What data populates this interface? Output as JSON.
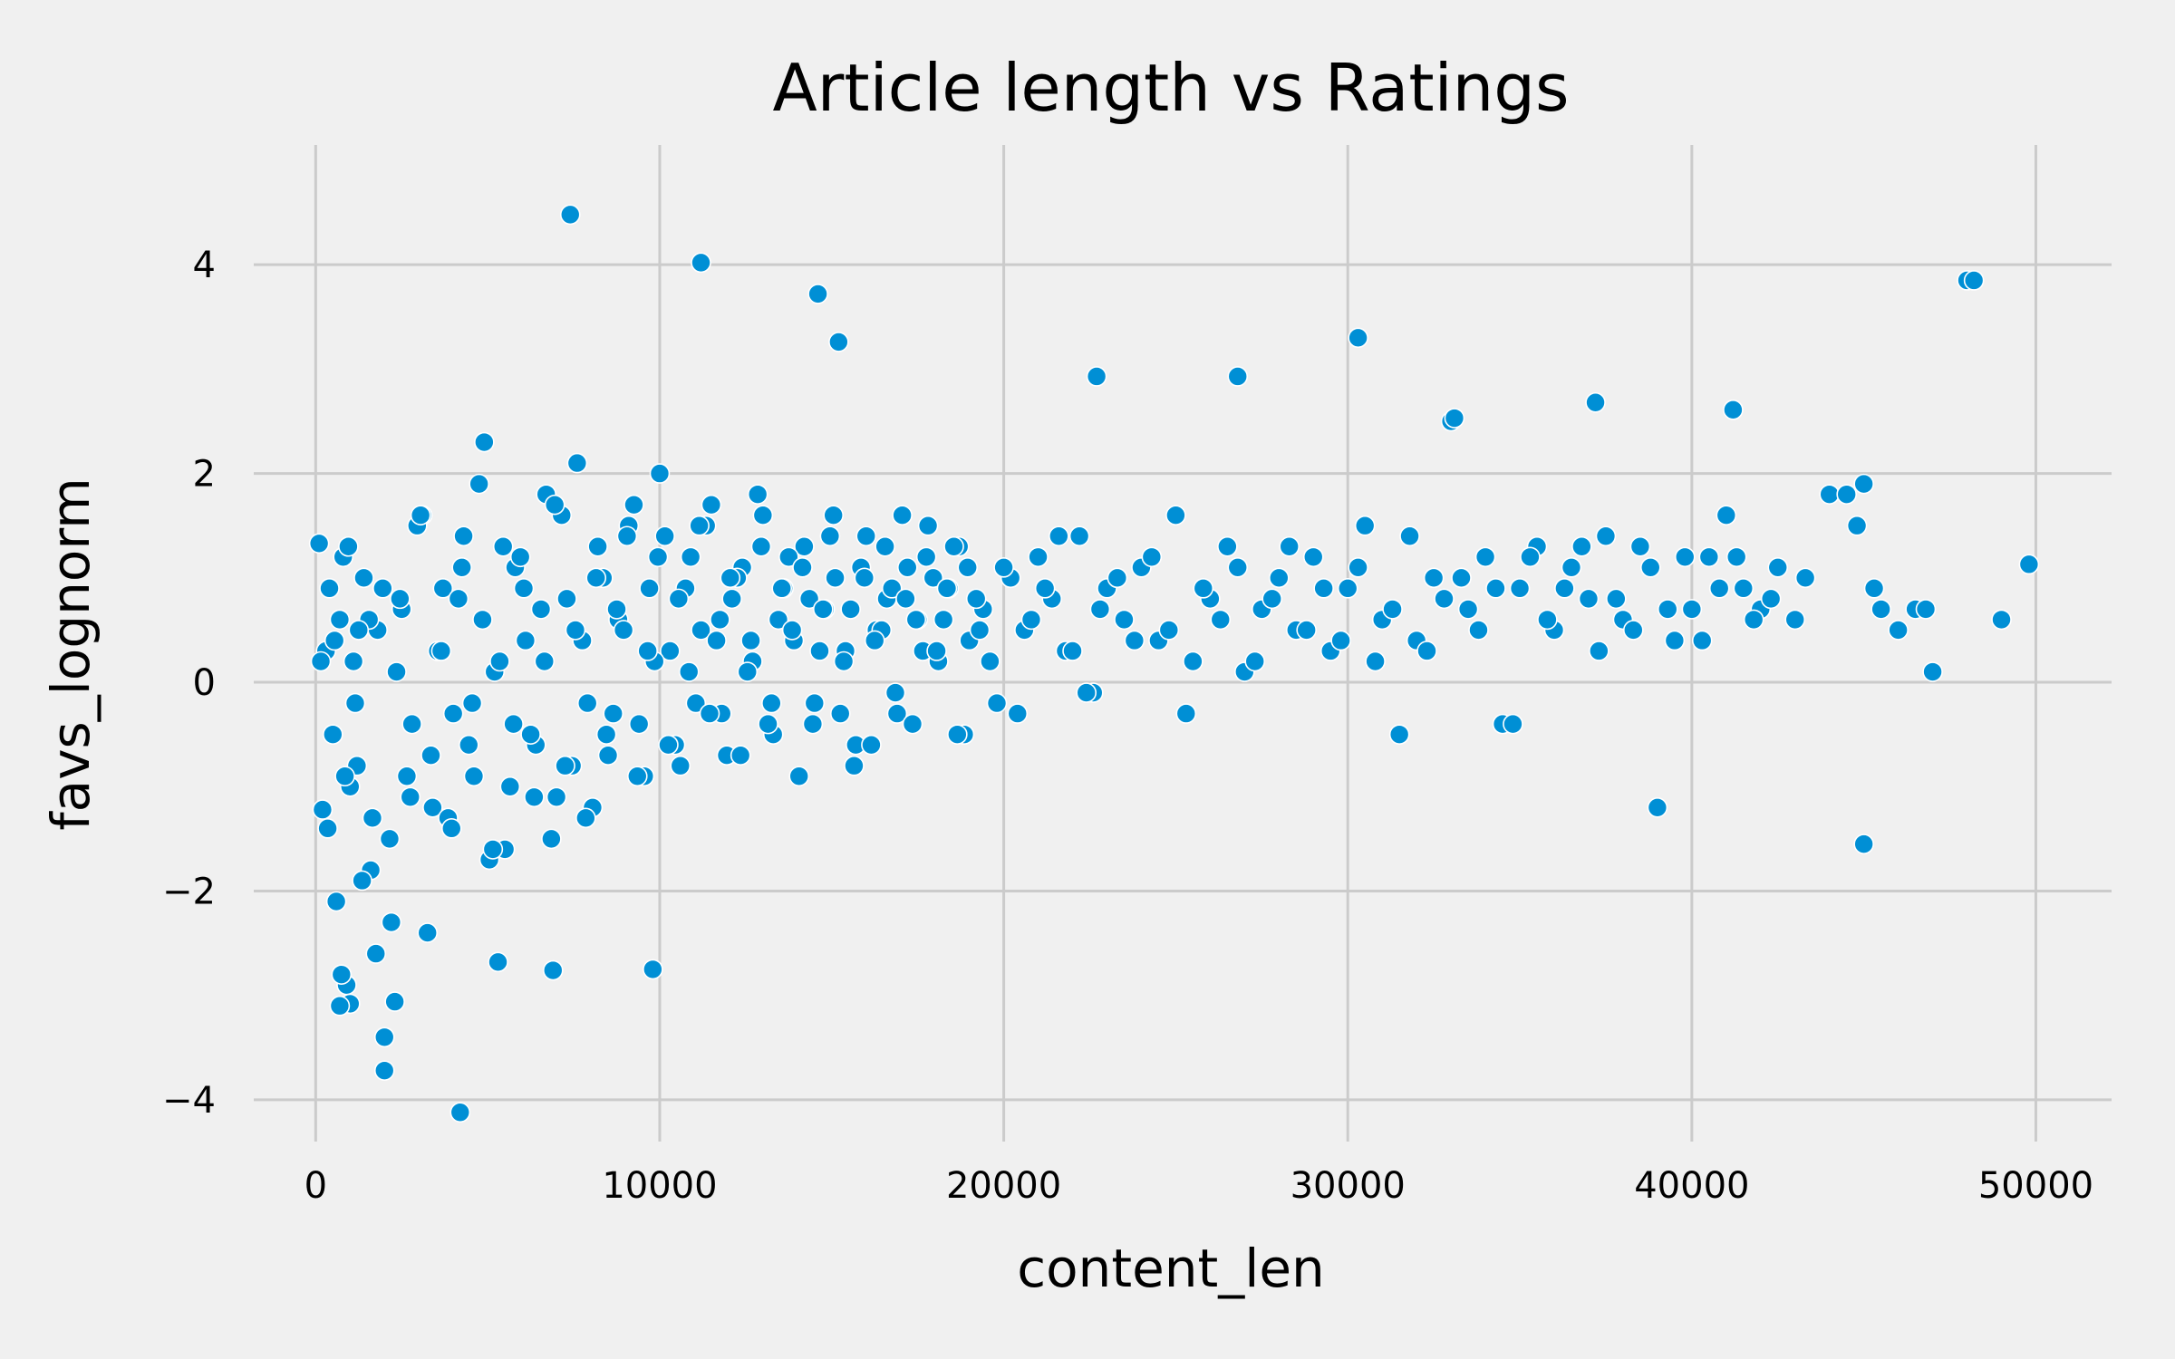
{
  "chart_data": {
    "type": "scatter",
    "title": "Article length vs Ratings",
    "xlabel": "content_len",
    "ylabel": "favs_lognorm",
    "xlim": [
      -1800,
      52200
    ],
    "ylim": [
      -4.4,
      4.8
    ],
    "xticks": [
      0,
      10000,
      20000,
      30000,
      40000,
      50000
    ],
    "xtick_labels": [
      "0",
      "10000",
      "20000",
      "30000",
      "40000",
      "50000"
    ],
    "yticks": [
      -4,
      -2,
      0,
      2,
      4
    ],
    "ytick_labels": [
      "−4",
      "−2",
      "0",
      "2",
      "4"
    ],
    "grid": true,
    "legend": "none",
    "colors": {
      "points": "#008fd5",
      "point_edge": "#ffffff",
      "background": "#f0f0f0",
      "grid": "#cbcbcb"
    },
    "x": [
      100,
      200,
      300,
      400,
      500,
      600,
      700,
      800,
      900,
      1000,
      1100,
      1200,
      1400,
      1600,
      1800,
      2000,
      2200,
      2500,
      2800,
      3100,
      3400,
      3700,
      4000,
      4300,
      4600,
      4900,
      5200,
      5500,
      5800,
      6100,
      6400,
      6700,
      7000,
      7300,
      7600,
      7900,
      8200,
      8500,
      8800,
      9100,
      9400,
      9700,
      10000,
      10300,
      10600,
      10900,
      11200,
      11500,
      11800,
      12100,
      12400,
      12700,
      13000,
      13300,
      13600,
      13900,
      14200,
      14500,
      14800,
      15100,
      15400,
      15700,
      16000,
      16300,
      16600,
      16900,
      17200,
      17500,
      17800,
      18100,
      18400,
      18700,
      19000,
      19400,
      19800,
      20200,
      20600,
      21000,
      21400,
      21800,
      22200,
      22600,
      23000,
      23500,
      24000,
      24500,
      25000,
      25500,
      26000,
      26500,
      27000,
      27500,
      28000,
      28500,
      29000,
      29500,
      30000,
      30500,
      31000,
      31500,
      32000,
      32500,
      33000,
      33500,
      34000,
      34500,
      35000,
      35500,
      36000,
      36500,
      37000,
      37500,
      38000,
      38500,
      39000,
      39500,
      40000,
      40500,
      41000,
      41500,
      42000,
      42500,
      43000,
      44000,
      44500,
      45000,
      45500,
      46000,
      46500,
      47000,
      48000,
      49000,
      49800,
      150,
      350,
      550,
      750,
      950,
      1150,
      1350,
      1550,
      1750,
      1950,
      2150,
      2350,
      2650,
      2950,
      3250,
      3550,
      3850,
      4150,
      4450,
      4750,
      5050,
      5350,
      5650,
      5950,
      6250,
      6550,
      6850,
      7150,
      7450,
      7750,
      8050,
      8350,
      8650,
      8950,
      9250,
      9550,
      9850,
      10150,
      10450,
      10750,
      11050,
      11350,
      11650,
      11950,
      12250,
      12550,
      12850,
      13150,
      13450,
      13750,
      14050,
      14350,
      14650,
      14950,
      15250,
      15550,
      15850,
      16150,
      16450,
      16750,
      17050,
      17350,
      17650,
      17950,
      18250,
      18550,
      18850,
      19200,
      19600,
      20000,
      20400,
      20800,
      21200,
      21600,
      22000,
      22400,
      22800,
      23300,
      23800,
      24300,
      24800,
      25300,
      25800,
      26300,
      26800,
      27300,
      27800,
      28300,
      28800,
      29300,
      29800,
      30300,
      30800,
      31300,
      31800,
      32300,
      32800,
      33300,
      33800,
      34300,
      34800,
      35300,
      35800,
      36300,
      36800,
      37300,
      37800,
      38300,
      38800,
      39300,
      39800,
      40300,
      40800,
      41300,
      41800,
      42300,
      43300,
      44800,
      45300,
      46800,
      7400,
      11200,
      14600,
      48200,
      30300,
      2000,
      4200,
      9800,
      6900,
      5300,
      2300,
      1000,
      700,
      15200,
      22700,
      26800,
      33100,
      41200,
      37200,
      45000,
      850,
      1250,
      1650,
      2450,
      2750,
      3050,
      3350,
      3650,
      3950,
      4250,
      4550,
      4850,
      5150,
      5450,
      5750,
      6050,
      6350,
      6650,
      6950,
      7250,
      7550,
      7850,
      8150,
      8450,
      8750,
      9050,
      9350,
      9650,
      9950,
      10250,
      10550,
      10850,
      11150,
      11450,
      11750,
      12050,
      12350,
      12650,
      12950,
      13250,
      13550,
      13850,
      14150,
      14450,
      14750,
      15050,
      15350,
      15650,
      15950,
      16250,
      16550,
      16850,
      17150,
      17450,
      17750,
      18050,
      18350,
      18650,
      18950,
      19300
    ],
    "y": [
      1.33,
      -1.22,
      0.3,
      0.9,
      -0.5,
      -2.1,
      0.6,
      1.2,
      -2.9,
      -1.0,
      0.2,
      -0.8,
      1.0,
      -1.8,
      0.5,
      -3.4,
      -2.3,
      0.7,
      -0.4,
      1.6,
      -1.2,
      0.9,
      -0.3,
      1.4,
      -0.9,
      2.3,
      0.1,
      -1.6,
      1.1,
      0.4,
      -0.6,
      1.8,
      -1.1,
      0.8,
      2.1,
      -0.2,
      1.3,
      -0.7,
      0.6,
      1.5,
      -0.4,
      0.9,
      2.0,
      0.3,
      -0.8,
      1.2,
      0.5,
      1.7,
      -0.3,
      0.8,
      1.1,
      0.2,
      1.6,
      -0.5,
      0.9,
      0.4,
      1.3,
      -0.2,
      0.7,
      1.0,
      0.3,
      -0.6,
      1.4,
      0.5,
      0.8,
      -0.3,
      1.1,
      0.6,
      1.5,
      0.2,
      0.9,
      1.3,
      0.4,
      0.7,
      -0.2,
      1.0,
      0.5,
      1.2,
      0.8,
      0.3,
      1.4,
      -0.1,
      0.9,
      0.6,
      1.1,
      0.4,
      1.6,
      0.2,
      0.8,
      1.3,
      0.1,
      0.7,
      1.0,
      0.5,
      1.2,
      0.3,
      0.9,
      1.5,
      0.6,
      -0.5,
      0.4,
      1.0,
      2.5,
      0.7,
      1.2,
      -0.4,
      0.9,
      1.3,
      0.5,
      1.1,
      0.8,
      1.4,
      0.6,
      1.3,
      -1.2,
      0.4,
      0.7,
      1.2,
      1.6,
      0.9,
      0.7,
      1.1,
      0.6,
      1.8,
      1.8,
      1.9,
      0.7,
      0.5,
      0.7,
      0.1,
      3.85,
      0.6,
      1.13,
      0.2,
      -1.4,
      0.4,
      -2.8,
      1.3,
      -0.2,
      -1.9,
      0.6,
      -2.6,
      0.9,
      -1.5,
      0.1,
      -0.9,
      1.5,
      -2.4,
      0.3,
      -1.3,
      0.8,
      -0.6,
      1.9,
      -1.7,
      0.2,
      -1.0,
      1.2,
      -0.5,
      0.7,
      -1.5,
      1.6,
      -0.8,
      0.4,
      -1.2,
      1.0,
      -0.3,
      0.5,
      1.7,
      -0.9,
      0.2,
      1.4,
      -0.6,
      0.9,
      -0.2,
      1.5,
      0.4,
      -0.7,
      1.0,
      0.1,
      1.8,
      -0.4,
      0.6,
      1.2,
      -0.9,
      0.8,
      0.3,
      1.4,
      -0.3,
      0.7,
      1.1,
      -0.6,
      0.5,
      0.9,
      1.6,
      -0.4,
      0.3,
      1.0,
      0.6,
      1.3,
      -0.5,
      0.8,
      0.2,
      1.1,
      -0.3,
      0.6,
      0.9,
      1.4,
      0.3,
      -0.1,
      0.7,
      1.0,
      0.4,
      1.2,
      0.5,
      -0.3,
      0.9,
      0.6,
      1.1,
      0.2,
      0.8,
      1.3,
      0.5,
      0.9,
      0.4,
      1.1,
      0.2,
      0.7,
      1.4,
      0.3,
      0.8,
      1.0,
      0.5,
      0.9,
      -0.4,
      1.2,
      0.6,
      0.9,
      1.3,
      0.3,
      0.8,
      0.5,
      1.1,
      0.7,
      1.2,
      0.4,
      0.9,
      1.2,
      0.6,
      0.8,
      1.0,
      1.5,
      0.9,
      0.7,
      4.48,
      4.02,
      3.72,
      3.85,
      3.3,
      -3.72,
      -4.12,
      -2.75,
      -2.76,
      -2.68,
      -3.06,
      -3.08,
      -3.1,
      3.26,
      2.93,
      2.93,
      2.53,
      2.61,
      2.68,
      -1.55,
      -0.9,
      0.5,
      -1.3,
      0.8,
      -1.1,
      1.6,
      -0.7,
      0.3,
      -1.4,
      1.1,
      -0.2,
      0.6,
      -1.6,
      1.3,
      -0.4,
      0.9,
      -1.1,
      0.2,
      1.7,
      -0.8,
      0.5,
      -1.3,
      1.0,
      -0.5,
      0.7,
      1.4,
      -0.9,
      0.3,
      1.2,
      -0.6,
      0.8,
      0.1,
      1.5,
      -0.3,
      0.6,
      1.0,
      -0.7,
      0.4,
      1.3,
      -0.2,
      0.9,
      0.5,
      1.1,
      -0.4,
      0.7,
      1.6,
      0.2,
      -0.8,
      1.0,
      0.4,
      1.3,
      -0.1,
      0.8,
      0.6,
      1.2,
      0.3,
      0.9,
      -0.5,
      1.1,
      0.5
    ]
  }
}
